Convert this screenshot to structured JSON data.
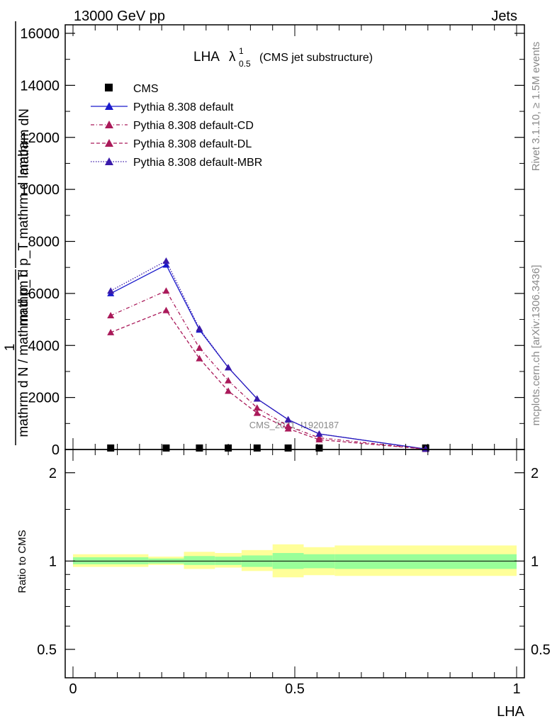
{
  "header": {
    "left": "13000 GeV pp",
    "right": "Jets"
  },
  "side_labels": {
    "rivet": "Rivet 3.1.10, ≥ 1.5M events",
    "mcplots": "mcplots.cern.ch [arXiv:1306.3436]"
  },
  "watermark": "CMS_2021_I1920187",
  "colors": {
    "default": "#1a1acc",
    "cd": "#aa1a5a",
    "dl": "#aa1a5a",
    "mbr": "#3a1aaa",
    "band_inner": "#99ff99",
    "band_outer": "#ffff99"
  },
  "chart_data": [
    {
      "type": "line",
      "title": "LHA",
      "title_sup": "1",
      "title_sub": "0.5",
      "title_lambda": "λ",
      "title_suffix": "(CMS jet substructure)",
      "ylabel": "1/mathrm d N / mathrm d p_T mathrm d^2N / mathrm d p_T mathrm d lambda",
      "ylabel_lines": [
        "mathrm dN",
        "mathrm d p_T mathrm d lamba",
        "1",
        "mathrm d N / mathrm d p_T"
      ],
      "xlim": [
        0,
        1
      ],
      "ylim": [
        0,
        16000
      ],
      "yticks": [
        0,
        2000,
        4000,
        6000,
        8000,
        10000,
        12000,
        14000,
        16000
      ],
      "ytick_labels": [
        "0",
        "2000",
        "4000",
        "6000",
        "8000",
        "10000",
        "12000",
        "14000",
        "16000"
      ],
      "legend_position": "top-left",
      "x": [
        0.085,
        0.21,
        0.285,
        0.35,
        0.415,
        0.485,
        0.555,
        0.795
      ],
      "series": [
        {
          "name": "CMS",
          "key": "cms",
          "marker": "square",
          "values": [
            30,
            30,
            30,
            30,
            30,
            30,
            30,
            30
          ]
        },
        {
          "name": "Pythia 8.308 default",
          "key": "default",
          "marker": "triangle",
          "dash": "",
          "values": [
            6000,
            7100,
            4600,
            3150,
            1950,
            1150,
            600,
            20
          ]
        },
        {
          "name": "Pythia 8.308 default-CD",
          "key": "cd",
          "marker": "triangle",
          "dash": "5,3,1,3",
          "values": [
            5150,
            6100,
            3900,
            2650,
            1600,
            900,
            450,
            15
          ]
        },
        {
          "name": "Pythia 8.308 default-DL",
          "key": "dl",
          "marker": "triangle",
          "dash": "5,3",
          "values": [
            4500,
            5350,
            3500,
            2250,
            1400,
            800,
            380,
            15
          ]
        },
        {
          "name": "Pythia 8.308 default-MBR",
          "key": "mbr",
          "marker": "triangle",
          "dash": "1.5,2",
          "values": [
            6100,
            7250,
            4650,
            3150,
            1950,
            1150,
            600,
            20
          ]
        }
      ]
    },
    {
      "type": "area",
      "ylabel": "Ratio to CMS",
      "xlabel": "LHA",
      "xlim": [
        0,
        1
      ],
      "ylim": [
        0.4,
        2.4
      ],
      "scale": "log",
      "yticks": [
        0.5,
        1,
        2
      ],
      "ytick_labels": [
        "0.5",
        "1",
        "2"
      ],
      "xticks": [
        0,
        0.5,
        1
      ],
      "xtick_labels": [
        "0",
        "0.5",
        "1"
      ],
      "bands": [
        {
          "x0": 0.0,
          "x1": 0.17,
          "inner": [
            0.975,
            1.03
          ],
          "outer": [
            0.955,
            1.055
          ]
        },
        {
          "x0": 0.17,
          "x1": 0.25,
          "inner": [
            0.98,
            1.02
          ],
          "outer": [
            0.97,
            1.035
          ]
        },
        {
          "x0": 0.25,
          "x1": 0.32,
          "inner": [
            0.97,
            1.04
          ],
          "outer": [
            0.94,
            1.075
          ]
        },
        {
          "x0": 0.32,
          "x1": 0.38,
          "inner": [
            0.97,
            1.035
          ],
          "outer": [
            0.95,
            1.065
          ]
        },
        {
          "x0": 0.38,
          "x1": 0.45,
          "inner": [
            0.955,
            1.045
          ],
          "outer": [
            0.925,
            1.09
          ]
        },
        {
          "x0": 0.45,
          "x1": 0.52,
          "inner": [
            0.94,
            1.065
          ],
          "outer": [
            0.88,
            1.14
          ]
        },
        {
          "x0": 0.52,
          "x1": 0.59,
          "inner": [
            0.945,
            1.055
          ],
          "outer": [
            0.895,
            1.115
          ]
        },
        {
          "x0": 0.59,
          "x1": 1.0,
          "inner": [
            0.94,
            1.055
          ],
          "outer": [
            0.89,
            1.13
          ]
        }
      ]
    }
  ]
}
